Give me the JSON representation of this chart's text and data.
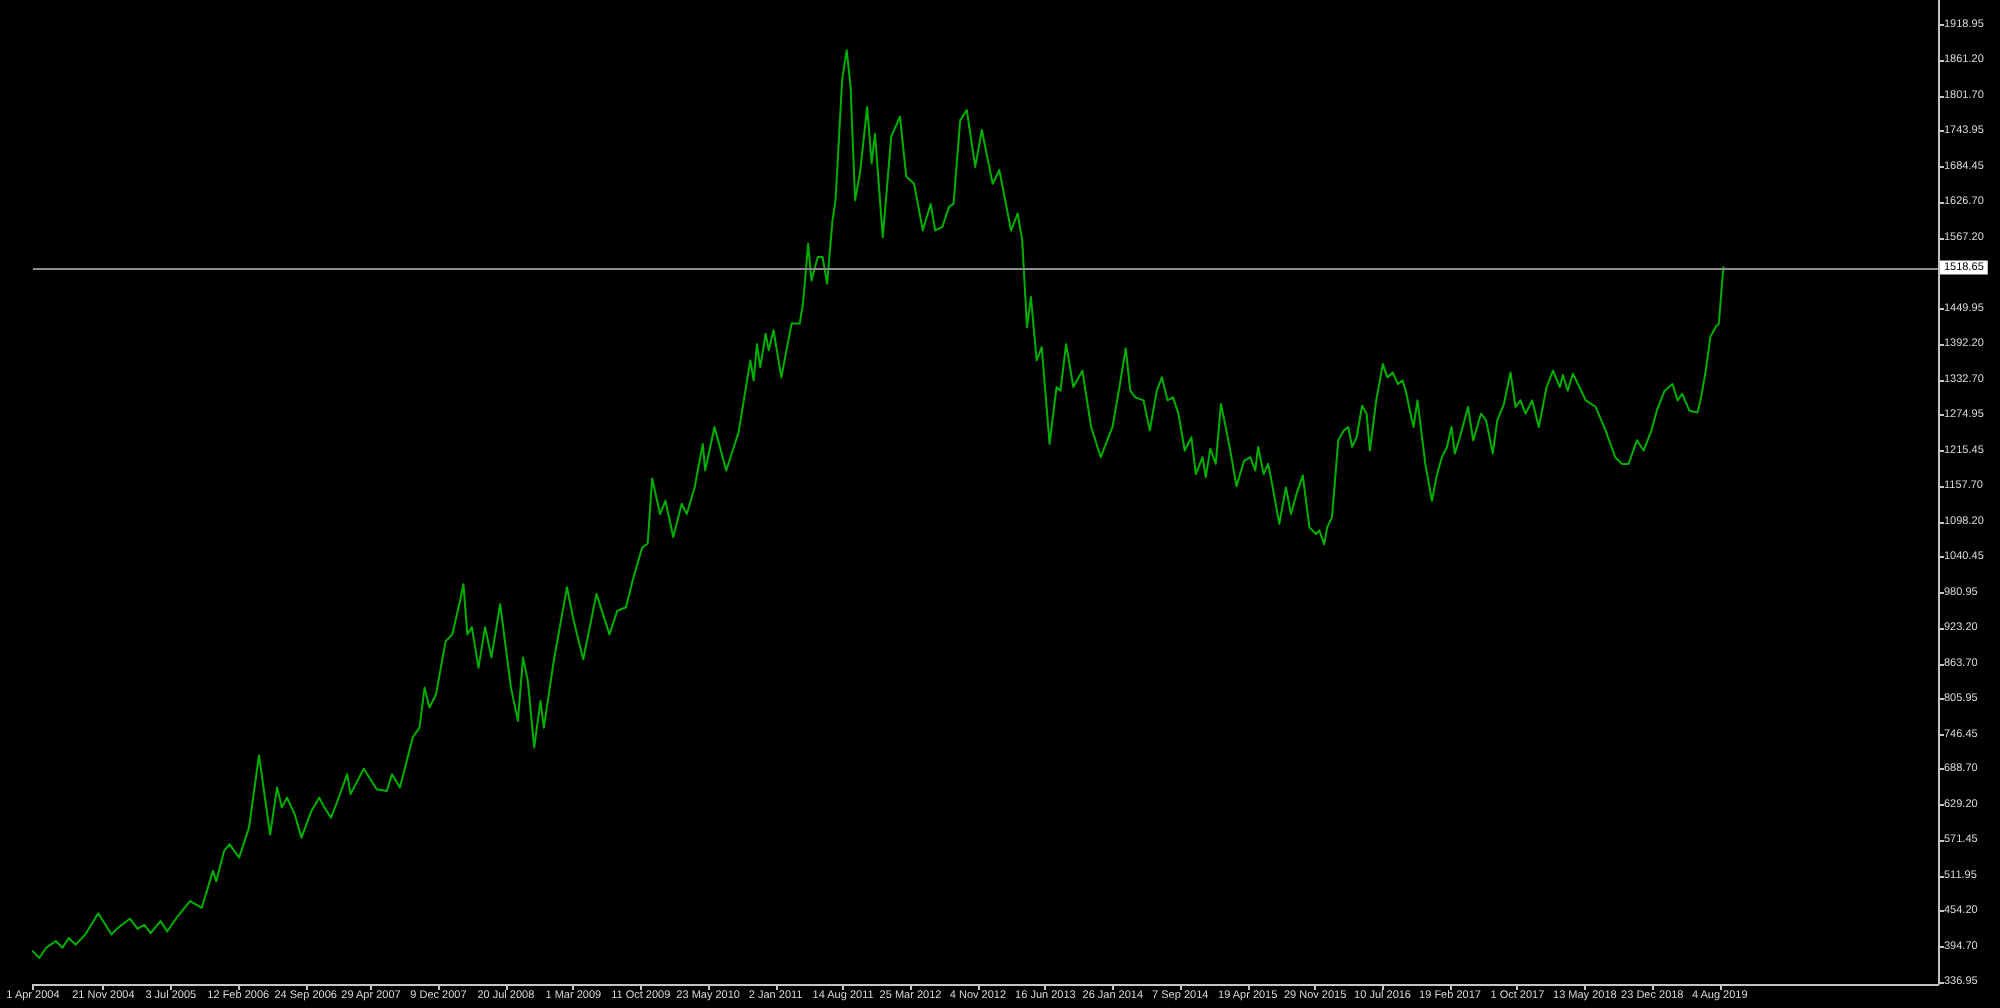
{
  "chart_data": {
    "type": "line",
    "color": "#00b000",
    "marker": "none",
    "line_style": "solid",
    "grid": false,
    "x": [
      "2004-04-01",
      "2004-04-22",
      "2004-05-15",
      "2004-06-16",
      "2004-07-08",
      "2004-07-29",
      "2004-08-21",
      "2004-09-22",
      "2004-11-04",
      "2004-12-18",
      "2005-01-09",
      "2005-02-17",
      "2005-03-15",
      "2005-04-06",
      "2005-04-27",
      "2005-05-30",
      "2005-06-21",
      "2005-07-23",
      "2005-09-05",
      "2005-10-14",
      "2005-11-20",
      "2005-12-01",
      "2005-12-27",
      "2006-01-14",
      "2006-02-15",
      "2006-03-20",
      "2006-04-22",
      "2006-05-29",
      "2006-06-21",
      "2006-07-07",
      "2006-07-24",
      "2006-08-19",
      "2006-09-10",
      "2006-10-13",
      "2006-11-08",
      "2006-11-25",
      "2006-12-17",
      "2007-01-08",
      "2007-02-09",
      "2007-02-20",
      "2007-04-05",
      "2007-05-18",
      "2007-06-20",
      "2007-07-08",
      "2007-08-03",
      "2007-09-15",
      "2007-10-07",
      "2007-10-24",
      "2007-11-09",
      "2007-12-01",
      "2008-01-02",
      "2008-01-24",
      "2008-02-19",
      "2008-03-01",
      "2008-03-14",
      "2008-03-29",
      "2008-04-20",
      "2008-05-12",
      "2008-06-02",
      "2008-07-01",
      "2008-08-06",
      "2008-08-29",
      "2008-09-15",
      "2008-10-01",
      "2008-10-22",
      "2008-11-12",
      "2008-11-23",
      "2008-12-26",
      "2009-01-17",
      "2009-02-08",
      "2009-03-02",
      "2009-04-03",
      "2009-05-17",
      "2009-06-29",
      "2009-07-25",
      "2009-08-23",
      "2009-09-14",
      "2009-10-16",
      "2009-11-03",
      "2009-11-18",
      "2009-12-14",
      "2010-01-01",
      "2010-01-27",
      "2010-02-24",
      "2010-03-13",
      "2010-04-08",
      "2010-05-05",
      "2010-05-13",
      "2010-06-13",
      "2010-07-22",
      "2010-09-01",
      "2010-10-10",
      "2010-10-21",
      "2010-11-01",
      "2010-11-12",
      "2010-11-30",
      "2010-12-10",
      "2010-12-26",
      "2011-01-21",
      "2011-02-24",
      "2011-03-23",
      "2011-04-03",
      "2011-04-20",
      "2011-05-01",
      "2011-05-22",
      "2011-06-07",
      "2011-06-22",
      "2011-07-10",
      "2011-07-20",
      "2011-08-11",
      "2011-08-26",
      "2011-09-08",
      "2011-09-23",
      "2011-10-09",
      "2011-11-02",
      "2011-11-17",
      "2011-11-28",
      "2011-12-24",
      "2012-01-21",
      "2012-02-19",
      "2012-03-11",
      "2012-04-06",
      "2012-05-05",
      "2012-05-31",
      "2012-06-15",
      "2012-07-09",
      "2012-07-31",
      "2012-08-15",
      "2012-09-06",
      "2012-09-28",
      "2012-10-26",
      "2012-11-17",
      "2012-12-23",
      "2013-01-14",
      "2013-02-22",
      "2013-03-16",
      "2013-03-31",
      "2013-04-16",
      "2013-04-29",
      "2013-05-18",
      "2013-06-04",
      "2013-06-30",
      "2013-07-23",
      "2013-08-05",
      "2013-08-24",
      "2013-09-17",
      "2013-10-17",
      "2013-11-15",
      "2013-12-17",
      "2014-01-25",
      "2014-02-17",
      "2014-03-10",
      "2014-03-25",
      "2014-04-10",
      "2014-05-08",
      "2014-05-29",
      "2014-06-21",
      "2014-07-08",
      "2014-07-27",
      "2014-08-14",
      "2014-09-01",
      "2014-09-22",
      "2014-10-14",
      "2014-10-29",
      "2014-11-20",
      "2014-12-01",
      "2014-12-16",
      "2015-01-03",
      "2015-01-20",
      "2015-02-05",
      "2015-02-22",
      "2015-03-13",
      "2015-04-07",
      "2015-04-28",
      "2015-05-14",
      "2015-05-24",
      "2015-06-11",
      "2015-06-26",
      "2015-07-07",
      "2015-08-02",
      "2015-08-24",
      "2015-09-10",
      "2015-09-28",
      "2015-10-19",
      "2015-11-10",
      "2015-12-02",
      "2015-12-13",
      "2015-12-29",
      "2016-01-08",
      "2016-01-24",
      "2016-02-14",
      "2016-03-03",
      "2016-03-18",
      "2016-03-31",
      "2016-04-15",
      "2016-05-03",
      "2016-05-18",
      "2016-05-29",
      "2016-06-19",
      "2016-07-11",
      "2016-07-26",
      "2016-08-13",
      "2016-08-30",
      "2016-09-14",
      "2016-09-25",
      "2016-10-11",
      "2016-10-21",
      "2016-11-03",
      "2016-11-29",
      "2016-12-21",
      "2017-01-07",
      "2017-01-23",
      "2017-02-09",
      "2017-02-24",
      "2017-03-07",
      "2017-03-24",
      "2017-04-20",
      "2017-05-07",
      "2017-06-02",
      "2017-06-19",
      "2017-07-11",
      "2017-07-26",
      "2017-08-17",
      "2017-09-08",
      "2017-09-25",
      "2017-10-11",
      "2017-10-28",
      "2017-11-19",
      "2017-12-11",
      "2018-01-06",
      "2018-01-27",
      "2018-02-19",
      "2018-03-01",
      "2018-03-17",
      "2018-04-03",
      "2018-04-20",
      "2018-05-16",
      "2018-06-18",
      "2018-07-21",
      "2018-08-22",
      "2018-09-13",
      "2018-10-05",
      "2018-11-02",
      "2018-11-24",
      "2018-12-20",
      "2019-01-07",
      "2019-02-02",
      "2019-02-28",
      "2019-03-17",
      "2019-04-01",
      "2019-04-25",
      "2019-05-22",
      "2019-06-01",
      "2019-06-17",
      "2019-07-04",
      "2019-07-21",
      "2019-08-01",
      "2019-08-16"
    ],
    "values": [
      388,
      377,
      394,
      405,
      394,
      410,
      399,
      416,
      451,
      416,
      427,
      442,
      425,
      432,
      418,
      438,
      421,
      444,
      471,
      460,
      521,
      504,
      554,
      565,
      543,
      593,
      712,
      581,
      659,
      626,
      642,
      614,
      576,
      620,
      642,
      626,
      609,
      637,
      681,
      648,
      690,
      656,
      653,
      681,
      659,
      742,
      758,
      824,
      791,
      813,
      901,
      912,
      968,
      995,
      912,
      924,
      857,
      924,
      874,
      962,
      824,
      769,
      874,
      835,
      725,
      802,
      758,
      868,
      929,
      990,
      935,
      871,
      979,
      912,
      951,
      957,
      1001,
      1056,
      1062,
      1170,
      1111,
      1133,
      1073,
      1128,
      1111,
      1155,
      1227,
      1183,
      1255,
      1183,
      1246,
      1365,
      1332,
      1392,
      1354,
      1409,
      1382,
      1415,
      1337,
      1426,
      1426,
      1459,
      1558,
      1497,
      1536,
      1536,
      1492,
      1597,
      1630,
      1829,
      1878,
      1818,
      1630,
      1674,
      1784,
      1691,
      1740,
      1569,
      1735,
      1768,
      1669,
      1657,
      1580,
      1624,
      1580,
      1586,
      1619,
      1624,
      1762,
      1779,
      1685,
      1746,
      1657,
      1680,
      1580,
      1608,
      1564,
      1420,
      1470,
      1365,
      1387,
      1227,
      1321,
      1315,
      1392,
      1321,
      1348,
      1255,
      1205,
      1255,
      1321,
      1385,
      1315,
      1304,
      1299,
      1249,
      1315,
      1337,
      1299,
      1304,
      1277,
      1216,
      1238,
      1177,
      1205,
      1172,
      1219,
      1194,
      1293,
      1255,
      1211,
      1157,
      1199,
      1205,
      1183,
      1222,
      1177,
      1194,
      1166,
      1095,
      1155,
      1111,
      1144,
      1175,
      1089,
      1078,
      1084,
      1061,
      1089,
      1106,
      1233,
      1249,
      1255,
      1222,
      1238,
      1290,
      1277,
      1216,
      1299,
      1359,
      1337,
      1345,
      1326,
      1332,
      1315,
      1277,
      1255,
      1299,
      1194,
      1133,
      1177,
      1205,
      1222,
      1255,
      1211,
      1238,
      1288,
      1233,
      1277,
      1266,
      1211,
      1266,
      1293,
      1345,
      1288,
      1299,
      1277,
      1299,
      1255,
      1321,
      1348,
      1321,
      1341,
      1315,
      1343,
      1326,
      1299,
      1288,
      1249,
      1205,
      1194,
      1194,
      1233,
      1216,
      1249,
      1282,
      1315,
      1326,
      1299,
      1310,
      1282,
      1279,
      1299,
      1343,
      1404,
      1420,
      1426,
      1519
    ],
    "xlim": [
      "2004-04-01",
      "2021-07-29"
    ],
    "xticks": [
      {
        "value": "2004-04-01",
        "label": "1 Apr 2004"
      },
      {
        "value": "2004-11-21",
        "label": "21 Nov 2004"
      },
      {
        "value": "2005-07-03",
        "label": "3 Jul 2005"
      },
      {
        "value": "2006-02-12",
        "label": "12 Feb 2006"
      },
      {
        "value": "2006-09-24",
        "label": "24 Sep 2006"
      },
      {
        "value": "2007-04-29",
        "label": "29 Apr 2007"
      },
      {
        "value": "2007-12-09",
        "label": "9 Dec 2007"
      },
      {
        "value": "2008-07-20",
        "label": "20 Jul 2008"
      },
      {
        "value": "2009-03-01",
        "label": "1 Mar 2009"
      },
      {
        "value": "2009-10-11",
        "label": "11 Oct 2009"
      },
      {
        "value": "2010-05-23",
        "label": "23 May 2010"
      },
      {
        "value": "2011-01-02",
        "label": "2 Jan 2011"
      },
      {
        "value": "2011-08-14",
        "label": "14 Aug 2011"
      },
      {
        "value": "2012-03-25",
        "label": "25 Mar 2012"
      },
      {
        "value": "2012-11-04",
        "label": "4 Nov 2012"
      },
      {
        "value": "2013-06-16",
        "label": "16 Jun 2013"
      },
      {
        "value": "2014-01-26",
        "label": "26 Jan 2014"
      },
      {
        "value": "2014-09-07",
        "label": "7 Sep 2014"
      },
      {
        "value": "2015-04-19",
        "label": "19 Apr 2015"
      },
      {
        "value": "2015-11-29",
        "label": "29 Nov 2015"
      },
      {
        "value": "2016-07-10",
        "label": "10 Jul 2016"
      },
      {
        "value": "2017-02-19",
        "label": "19 Feb 2017"
      },
      {
        "value": "2017-10-01",
        "label": "1 Oct 2017"
      },
      {
        "value": "2018-05-13",
        "label": "13 May 2018"
      },
      {
        "value": "2018-12-23",
        "label": "23 Dec 2018"
      },
      {
        "value": "2019-08-04",
        "label": "4 Aug 2019"
      }
    ],
    "ylim": [
      334,
      1961
    ],
    "yticks": [
      336.95,
      {
        "value": 394.7,
        "label": "394.70"
      },
      {
        "value": 454.2,
        "label": "454.20"
      },
      511.95,
      571.45,
      {
        "value": 629.2,
        "label": "629.20"
      },
      {
        "value": 688.7,
        "label": "688.70"
      },
      746.45,
      805.95,
      {
        "value": 863.7,
        "label": "863.70"
      },
      {
        "value": 923.2,
        "label": "923.20"
      },
      980.95,
      1040.45,
      {
        "value": 1098.2,
        "label": "1098.20"
      },
      {
        "value": 1157.7,
        "label": "1157.70"
      },
      1215.45,
      1274.95,
      {
        "value": 1332.7,
        "label": "1332.70"
      },
      {
        "value": 1392.2,
        "label": "1392.20"
      },
      1449.95,
      {
        "value": 1567.2,
        "label": "1567.20"
      },
      {
        "value": 1626.7,
        "label": "1626.70"
      },
      1684.45,
      1743.95,
      {
        "value": 1801.7,
        "label": "1801.70"
      },
      {
        "value": 1861.2,
        "label": "1861.20"
      },
      1918.95
    ],
    "ref_lines": [
      {
        "axis": "y",
        "value": 1518.65,
        "label": "1518.65",
        "color": "#8c8c8c"
      }
    ]
  }
}
